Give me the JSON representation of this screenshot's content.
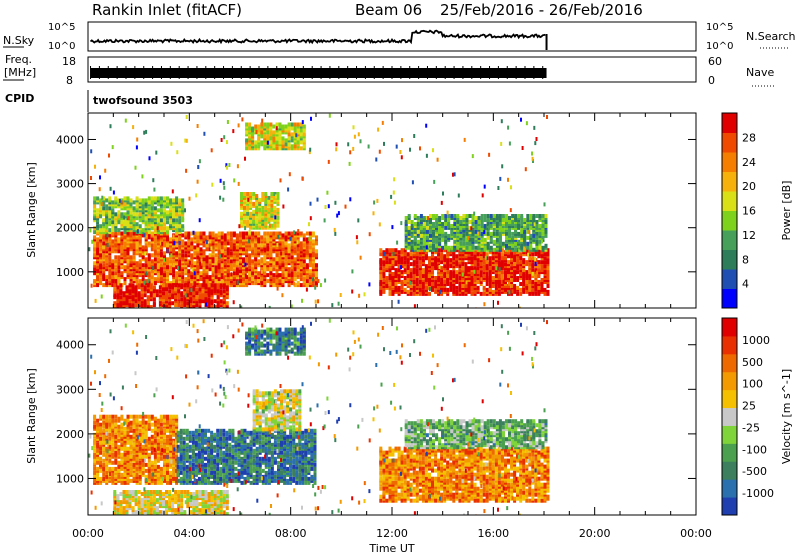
{
  "header": {
    "station": "Rankin Inlet (fitACF)",
    "beam": "Beam 06",
    "daterange": "25/Feb/2016 - 26/Feb/2016"
  },
  "noise_panel": {
    "left_label": "N.Sky",
    "right_label": "N.Search",
    "left_ticks": [
      "10^5",
      "10^0"
    ],
    "right_ticks": [
      "10^5",
      "10^0"
    ]
  },
  "freq_panel": {
    "left_label_1": "Freq.",
    "left_label_2": "[MHz]",
    "left_tick_values": [
      "18",
      "8"
    ],
    "right_tick_values": [
      "60",
      "0"
    ],
    "right_label": "Nave"
  },
  "cpid_panel": {
    "label": "CPID",
    "value": "twofsound 3503"
  },
  "chart_data": [
    {
      "type": "heatmap",
      "title": "Power",
      "ylabel": "Slant Range [km]",
      "ylim": [
        180,
        4600
      ],
      "xlim": [
        0,
        24
      ],
      "yticks": [
        "1000",
        "2000",
        "3000",
        "4000"
      ],
      "colorbar": {
        "label": "Power [dB]",
        "ticks": [
          "4",
          "8",
          "12",
          "16",
          "20",
          "24",
          "28"
        ],
        "range": [
          0,
          30
        ],
        "colors": [
          "#0000ff",
          "#1f4fb3",
          "#2e7d5a",
          "#46a05a",
          "#7fd21c",
          "#d9e016",
          "#f6b10a",
          "#f57e00",
          "#ef4a00",
          "#e00000"
        ]
      },
      "data_end_hour": 18.1,
      "regions": [
        {
          "t0": 0.2,
          "t1": 9.0,
          "r0": 700,
          "r1": 1900,
          "level": 0.82
        },
        {
          "t0": 0.2,
          "t1": 3.8,
          "r0": 1900,
          "r1": 2700,
          "level": 0.45
        },
        {
          "t0": 6.0,
          "t1": 7.5,
          "r0": 2000,
          "r1": 2800,
          "level": 0.55
        },
        {
          "t0": 6.2,
          "t1": 8.5,
          "r0": 3800,
          "r1": 4350,
          "level": 0.55
        },
        {
          "t0": 1.0,
          "t1": 5.5,
          "r0": 200,
          "r1": 700,
          "level": 0.95
        },
        {
          "t0": 11.5,
          "t1": 18.1,
          "r0": 500,
          "r1": 1500,
          "level": 0.92
        },
        {
          "t0": 12.5,
          "t1": 18.1,
          "r0": 1500,
          "r1": 2300,
          "level": 0.35
        }
      ]
    },
    {
      "type": "heatmap",
      "title": "Velocity",
      "ylabel": "Slant Range [km]",
      "xlabel": "Time UT",
      "ylim": [
        180,
        4600
      ],
      "xlim": [
        0,
        24
      ],
      "yticks": [
        "1000",
        "2000",
        "3000",
        "4000"
      ],
      "xticks": [
        "00:00",
        "04:00",
        "08:00",
        "12:00",
        "16:00",
        "20:00",
        "00:00"
      ],
      "colorbar": {
        "label": "Velocity [m s^-1]",
        "ticks": [
          "1000",
          "500",
          "100",
          "25",
          "-25",
          "-100",
          "-500",
          "-1000"
        ],
        "colors": [
          "#1f3fb0",
          "#2a6fae",
          "#3c7f5e",
          "#4aa04e",
          "#7fd43a",
          "#c8c8c8",
          "#f5c000",
          "#f29a00",
          "#ee6a00",
          "#e83000",
          "#e00000"
        ]
      },
      "data_end_hour": 18.1,
      "regions": [
        {
          "t0": 0.2,
          "t1": 3.5,
          "r0": 900,
          "r1": 2400,
          "level": 0.72
        },
        {
          "t0": 3.5,
          "t1": 9.0,
          "r0": 900,
          "r1": 2100,
          "level": 0.18
        },
        {
          "t0": 6.5,
          "t1": 8.3,
          "r0": 2100,
          "r1": 3000,
          "level": 0.5
        },
        {
          "t0": 6.2,
          "t1": 8.5,
          "r0": 3800,
          "r1": 4350,
          "level": 0.2
        },
        {
          "t0": 1.0,
          "t1": 5.5,
          "r0": 200,
          "r1": 700,
          "level": 0.55
        },
        {
          "t0": 11.5,
          "t1": 18.1,
          "r0": 500,
          "r1": 1700,
          "level": 0.72
        },
        {
          "t0": 12.5,
          "t1": 18.1,
          "r0": 1700,
          "r1": 2300,
          "level": 0.35
        }
      ]
    }
  ]
}
